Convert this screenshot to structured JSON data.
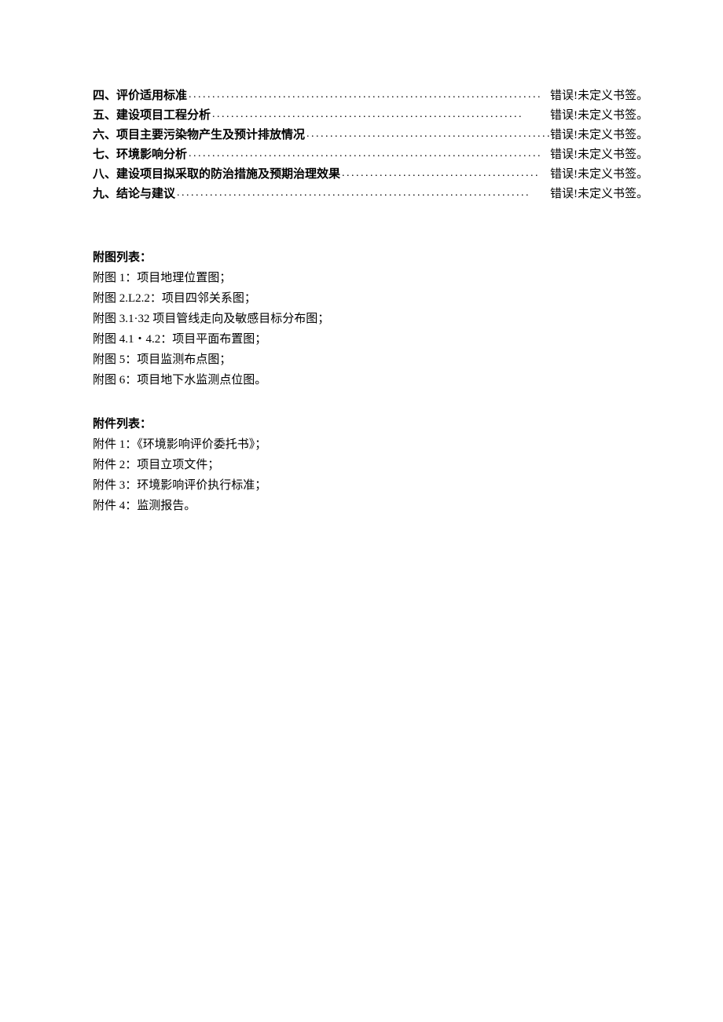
{
  "toc": {
    "items": [
      {
        "title": "四、评价适用标准",
        "page": "错误!未定义书签。"
      },
      {
        "title": "五、建设项目工程分析",
        "page": "错误!未定义书签。"
      },
      {
        "title": "六、项目主要污染物产生及预计排放情况",
        "page": "错误!未定义书签。"
      },
      {
        "title": "七、环境影响分析",
        "page": "错误!未定义书签。"
      },
      {
        "title": "八、建设项目拟采取的防治措施及预期治理效果",
        "page": "错误!未定义书签。"
      },
      {
        "title": "九、结论与建议",
        "page": "错误!未定义书签。"
      }
    ],
    "dots_long": "...........................................................................",
    "dots_med": "..................................................................",
    "dots_short": "....................................................",
    "dots_xshort": ".........................................."
  },
  "figures": {
    "heading": "附图列表：",
    "items": [
      "附图 1：项目地理位置图；",
      "附图 2.L2.2：项目四邻关系图；",
      "附图 3.1·32 项目管线走向及敏感目标分布图；",
      "附图 4.1・4.2：项目平面布置图；",
      "附图 5：项目监测布点图；",
      "附图 6：项目地下水监测点位图。"
    ]
  },
  "attachments": {
    "heading": "附件列表：",
    "items": [
      "附件 1：《环境影响评价委托书》；",
      "附件 2：项目立项文件；",
      "附件 3：环境影响评价执行标准；",
      "附件 4：监测报告。"
    ]
  },
  "colors": {
    "text": "#000000",
    "background": "#ffffff"
  },
  "typography": {
    "body_fontsize": 15,
    "line_height": 26
  }
}
